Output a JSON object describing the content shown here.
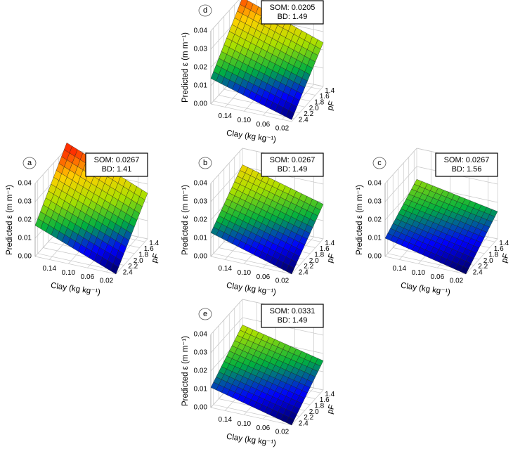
{
  "chart_data": [
    {
      "type": "surface",
      "panel": "a",
      "annotation": [
        "SOM: 0.0267",
        "BD: 1.41"
      ],
      "xlabel": "Clay (kg kg⁻¹)",
      "ylabel": "pF",
      "zlabel": "Predicted ε (m m⁻¹)",
      "x": [
        0.17,
        0
      ],
      "y": [
        2.5,
        1.3
      ],
      "z": [
        [
          0.017,
          0.0
        ],
        [
          0.043,
          0.025
        ]
      ],
      "xlim": [
        0.17,
        0
      ],
      "ylim": [
        2.5,
        1.3
      ],
      "zlim": [
        0,
        0.04
      ],
      "xticks": [
        0.14,
        {
          "value": 0.1,
          "label": "0.10"
        },
        0.06,
        0.02
      ],
      "yticks": [
        1.4,
        1.6,
        1.8,
        {
          "value": 2,
          "label": "2.0"
        },
        2.2,
        2.4
      ],
      "zticks": [
        {
          "value": 0,
          "label": "0.00"
        },
        0.01,
        0.02,
        0.03,
        0.04
      ],
      "colormap": [
        "#00005a",
        "#0000ff",
        "#00b040",
        "#a8e000",
        "#ffd000",
        "#ff3000"
      ]
    },
    {
      "type": "surface",
      "panel": "b",
      "annotation": [
        "SOM: 0.0267",
        "BD: 1.49"
      ],
      "xlabel": "Clay (kg kg⁻¹)",
      "ylabel": "pF",
      "zlabel": "Predicted ε (m m⁻¹)",
      "x": [
        0.17,
        0
      ],
      "y": [
        2.5,
        1.3
      ],
      "z": [
        [
          0.013,
          0.0
        ],
        [
          0.031,
          0.019
        ]
      ],
      "xlim": [
        0.17,
        0
      ],
      "ylim": [
        2.5,
        1.3
      ],
      "zlim": [
        0,
        0.04
      ],
      "xticks": [
        0.14,
        {
          "value": 0.1,
          "label": "0.10"
        },
        0.06,
        0.02
      ],
      "yticks": [
        1.4,
        1.6,
        1.8,
        {
          "value": 2,
          "label": "2.0"
        },
        2.2,
        2.4
      ],
      "zticks": [
        {
          "value": 0,
          "label": "0.00"
        },
        0.01,
        0.02,
        0.03,
        0.04
      ],
      "colormap": [
        "#00005a",
        "#0000ff",
        "#00b040",
        "#a8e000",
        "#ffd000",
        "#ff3000"
      ]
    },
    {
      "type": "surface",
      "panel": "c",
      "annotation": [
        "SOM: 0.0267",
        "BD: 1.56"
      ],
      "xlabel": "Clay (kg kg⁻¹)",
      "ylabel": "pF",
      "zlabel": "Predicted ε (m m⁻¹)",
      "x": [
        0.17,
        0
      ],
      "y": [
        2.5,
        1.3
      ],
      "z": [
        [
          0.01,
          0.0
        ],
        [
          0.023,
          0.015
        ]
      ],
      "xlim": [
        0.17,
        0
      ],
      "ylim": [
        2.5,
        1.3
      ],
      "zlim": [
        0,
        0.04
      ],
      "xticks": [
        0.14,
        {
          "value": 0.1,
          "label": "0.10"
        },
        0.06,
        0.02
      ],
      "yticks": [
        1.4,
        1.6,
        1.8,
        {
          "value": 2,
          "label": "2.0"
        },
        2.2,
        2.4
      ],
      "zticks": [
        {
          "value": 0,
          "label": "0.00"
        },
        0.01,
        0.02,
        0.03,
        0.04
      ],
      "colormap": [
        "#00005a",
        "#0000ff",
        "#00b040",
        "#a8e000",
        "#ffd000",
        "#ff3000"
      ]
    },
    {
      "type": "surface",
      "panel": "d",
      "annotation": [
        "SOM: 0.0205",
        "BD: 1.49"
      ],
      "xlabel": "Clay (kg kg⁻¹)",
      "ylabel": "pF",
      "zlabel": "Predicted ε (m m⁻¹)",
      "x": [
        0.17,
        0
      ],
      "y": [
        2.5,
        1.3
      ],
      "z": [
        [
          0.014,
          0.001
        ],
        [
          0.039,
          0.024
        ]
      ],
      "xlim": [
        0.17,
        0
      ],
      "ylim": [
        2.5,
        1.3
      ],
      "zlim": [
        0,
        0.04
      ],
      "xticks": [
        0.14,
        {
          "value": 0.1,
          "label": "0.10"
        },
        0.06,
        0.02
      ],
      "yticks": [
        1.4,
        1.6,
        1.8,
        {
          "value": 2,
          "label": "2.0"
        },
        2.2,
        2.4
      ],
      "zticks": [
        {
          "value": 0,
          "label": "0.00"
        },
        0.01,
        0.02,
        0.03,
        0.04
      ],
      "colormap": [
        "#00005a",
        "#0000ff",
        "#00b040",
        "#a8e000",
        "#ffd000",
        "#ff3000"
      ]
    },
    {
      "type": "surface",
      "panel": "e",
      "annotation": [
        "SOM: 0.0331",
        "BD: 1.49"
      ],
      "xlabel": "Clay (kg kg⁻¹)",
      "ylabel": "pF",
      "zlabel": "Predicted ε (m m⁻¹)",
      "x": [
        0.17,
        0
      ],
      "y": [
        2.5,
        1.3
      ],
      "z": [
        [
          0.011,
          0.0
        ],
        [
          0.026,
          0.016
        ]
      ],
      "xlim": [
        0.17,
        0
      ],
      "ylim": [
        2.5,
        1.3
      ],
      "zlim": [
        0,
        0.04
      ],
      "xticks": [
        0.14,
        {
          "value": 0.1,
          "label": "0.10"
        },
        0.06,
        0.02
      ],
      "yticks": [
        1.4,
        1.6,
        1.8,
        {
          "value": 2,
          "label": "2.0"
        },
        2.2,
        2.4
      ],
      "zticks": [
        {
          "value": 0,
          "label": "0.00"
        },
        0.01,
        0.02,
        0.03,
        0.04
      ],
      "colormap": [
        "#00005a",
        "#0000ff",
        "#00b040",
        "#a8e000",
        "#ffd000",
        "#ff3000"
      ]
    }
  ]
}
